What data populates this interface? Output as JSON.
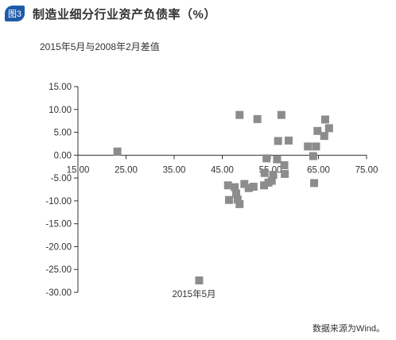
{
  "figure": {
    "badge": "图3",
    "title": "制造业细分行业资产负债率（%）",
    "source": "数据来源为Wind。"
  },
  "chart_data": {
    "type": "scatter",
    "subtitle": "2015年5月与2008年2月差值",
    "xlim": [
      15,
      75
    ],
    "ylim": [
      -30,
      15
    ],
    "x_ticks": [
      15,
      25,
      35,
      45,
      55,
      65,
      75
    ],
    "y_ticks": [
      15,
      10,
      5,
      0,
      -5,
      -10,
      -15,
      -20,
      -25,
      -30
    ],
    "x_tick_labels": [
      "15.00",
      "25.00",
      "35.00",
      "45.00",
      "55.00",
      "65.00",
      "75.00"
    ],
    "y_tick_labels": [
      "15.00",
      "10.00",
      "5.00",
      "0.00",
      "-5.00",
      "-10.00",
      "-15.00",
      "-20.00",
      "-25.00",
      "-30.00"
    ],
    "x_axis_label": "2015年5月",
    "marker_color": "#8c8c8c",
    "axis_color": "#333333",
    "grid": false,
    "points": [
      {
        "x": 23.2,
        "y": 0.8
      },
      {
        "x": 40.2,
        "y": -27.4
      },
      {
        "x": 46.2,
        "y": -6.6
      },
      {
        "x": 46.4,
        "y": -9.8
      },
      {
        "x": 47.6,
        "y": -7.0
      },
      {
        "x": 47.9,
        "y": -8.4
      },
      {
        "x": 48.2,
        "y": -9.7
      },
      {
        "x": 48.6,
        "y": -10.7
      },
      {
        "x": 48.6,
        "y": 8.8
      },
      {
        "x": 49.6,
        "y": -6.3
      },
      {
        "x": 50.5,
        "y": -7.2
      },
      {
        "x": 51.5,
        "y": -6.9
      },
      {
        "x": 52.3,
        "y": 7.9
      },
      {
        "x": 53.8,
        "y": -3.9
      },
      {
        "x": 53.7,
        "y": -6.6
      },
      {
        "x": 54.2,
        "y": -0.7
      },
      {
        "x": 54.6,
        "y": -6.0
      },
      {
        "x": 55.3,
        "y": -5.6
      },
      {
        "x": 55.6,
        "y": -4.3
      },
      {
        "x": 56.4,
        "y": -0.9
      },
      {
        "x": 56.6,
        "y": 3.1
      },
      {
        "x": 57.3,
        "y": 8.8
      },
      {
        "x": 57.9,
        "y": -2.2
      },
      {
        "x": 58.0,
        "y": -4.1
      },
      {
        "x": 58.8,
        "y": 3.2
      },
      {
        "x": 62.8,
        "y": 1.9
      },
      {
        "x": 63.9,
        "y": -0.2
      },
      {
        "x": 64.1,
        "y": -6.1
      },
      {
        "x": 64.5,
        "y": 1.9
      },
      {
        "x": 64.8,
        "y": 5.3
      },
      {
        "x": 66.2,
        "y": 4.2
      },
      {
        "x": 66.4,
        "y": 7.8
      },
      {
        "x": 67.2,
        "y": 5.9
      }
    ]
  }
}
